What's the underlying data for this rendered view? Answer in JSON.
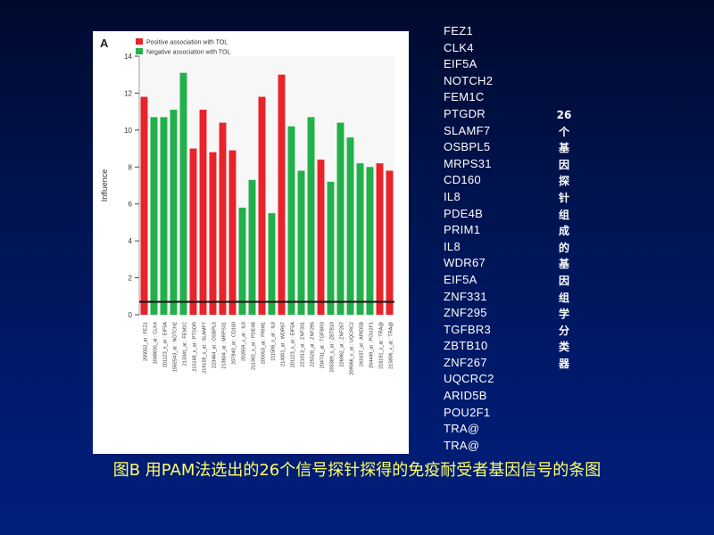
{
  "chart_data": {
    "type": "bar",
    "panel_letter": "A",
    "ylabel": "Influence",
    "ylim": [
      0,
      14
    ],
    "yticks": [
      0,
      2,
      4,
      6,
      8,
      10,
      12,
      14
    ],
    "threshold": 0.7,
    "legend": [
      {
        "label": "Positive association with TOL",
        "color": "#e8232a"
      },
      {
        "label": "Negative association with TOL",
        "color": "#22b04a"
      }
    ],
    "categories": [
      "205052_at : FEZ1",
      "1048835_at : CLK4",
      "201123_s_at : EIF5A",
      "1562543_at : NOTCH2",
      "213341_at : FEM1C",
      "215168_s_at : PTGDR",
      "219159_s_at : SLAMF7",
      "223464_at : OSBPL5",
      "213604_at : MRPS31",
      "207840_at : CD160",
      "202859_x_at : IL8",
      "211302_s_at : PDE4B",
      "205053_at : PRIM1",
      "211506_s_at : IL8",
      "214001_at : WDR67",
      "201123_s_at : EIF5A",
      "221013_at : ZNF331",
      "225528_at : ZNF295",
      "204731_at : TGFBR3",
      "203389_s_at : ZBTB10",
      "226962_at : ZNF267",
      "209066_x_at : UQCRC2",
      "241637_at : ARID5B",
      "204449_at : POU2F1",
      "216191_s_at : TRA@",
      "215806_x_at : TRA@"
    ],
    "values": [
      11.8,
      10.7,
      10.7,
      11.1,
      13.1,
      9.0,
      11.1,
      8.8,
      10.4,
      8.9,
      5.8,
      7.3,
      11.8,
      5.5,
      13.0,
      10.2,
      7.8,
      10.7,
      8.4,
      7.2,
      10.4,
      9.6,
      8.2,
      8.0,
      8.2,
      7.8
    ],
    "association": [
      "positive",
      "negative",
      "negative",
      "negative",
      "negative",
      "positive",
      "positive",
      "positive",
      "positive",
      "positive",
      "negative",
      "negative",
      "positive",
      "negative",
      "positive",
      "negative",
      "negative",
      "negative",
      "positive",
      "negative",
      "negative",
      "negative",
      "negative",
      "negative",
      "positive",
      "positive"
    ],
    "colors": {
      "positive": "#e8232a",
      "negative": "#22b04a",
      "threshold": "#111111"
    }
  },
  "gene_list": [
    "FEZ1",
    "CLK4",
    "EIF5A",
    "NOTCH2",
    "FEM1C",
    "PTGDR",
    "SLAMF7",
    "OSBPL5",
    "MRPS31",
    "CD160",
    "IL8",
    "PDE4B",
    "PRIM1",
    "IL8",
    "WDR67",
    "EIF5A",
    "ZNF331",
    "ZNF295",
    "TGFBR3",
    "ZBTB10",
    "ZNF267",
    "UQCRC2",
    "ARID5B",
    "POU2F1",
    "TRA@",
    "TRA@"
  ],
  "side_label": [
    "26",
    "个",
    "基",
    "因",
    "探",
    "针",
    "组",
    "成",
    "的",
    "基",
    "因",
    "组",
    "学",
    "分",
    "类",
    "器"
  ],
  "caption": "图B 用PAM法选出的26个信号探针探得的免疫耐受者基因信号的条图"
}
